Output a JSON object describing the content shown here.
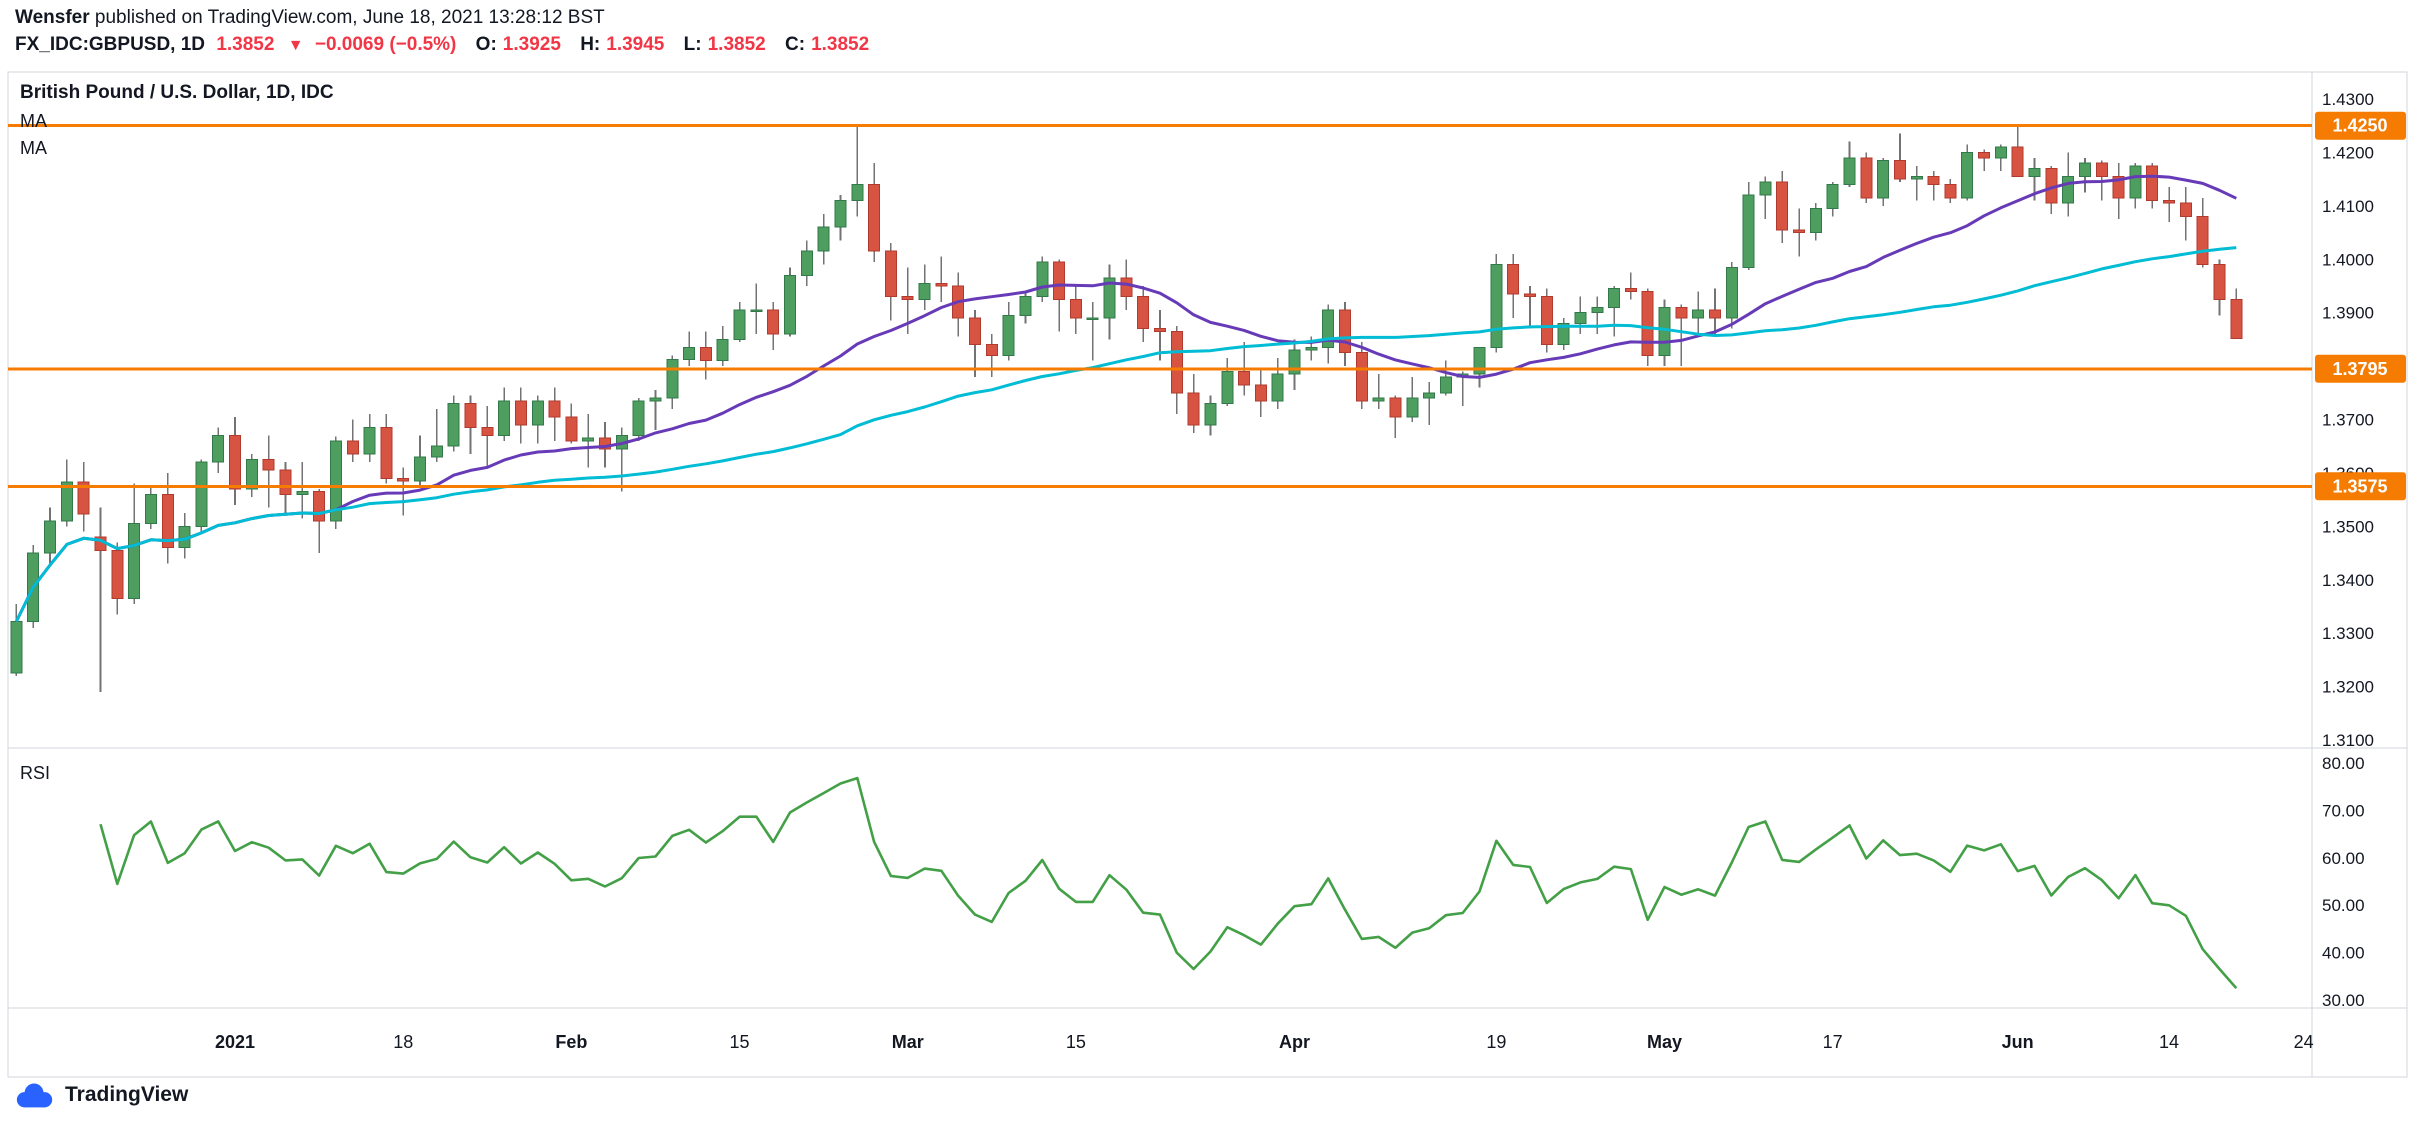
{
  "page": {
    "publish_line": {
      "publisher": "Wensfer",
      "rest": " published on TradingView.com, June 18, 2021 13:28:12 BST"
    },
    "symbol_line": {
      "symbol": "FX_IDC:GBPUSD, 1D",
      "last": "1.3852",
      "direction": "▼",
      "change": "−0.0069 (−0.5%)",
      "o_label": "O:",
      "o": "1.3925",
      "h_label": "H:",
      "h": "1.3945",
      "l_label": "L:",
      "l": "1.3852",
      "c_label": "C:",
      "c": "1.3852"
    },
    "pane_title": "British Pound / U.S. Dollar, 1D, IDC",
    "ma_label_1": "MA",
    "ma_label_2": "MA",
    "rsi_label": "RSI",
    "logo_text": "TradingView"
  },
  "colors": {
    "up_body": "#4e9e5f",
    "up_border": "#33784a",
    "down_body": "#d75442",
    "down_border": "#b03a2e",
    "wick": "#737375",
    "ma_fast": "#673ab7",
    "ma_slow": "#00bcd4",
    "rsi": "#43a047",
    "level": "#f57c00",
    "level_text": "#ffffff",
    "axis_text": "#131722",
    "frame": "#d1d4dc",
    "brand_blue": "#2962ff",
    "value_red": "#f23645"
  },
  "chart_data": {
    "type": "candlestick",
    "title": "British Pound / U.S. Dollar, 1D, IDC",
    "symbol": "FX_IDC:GBPUSD",
    "interval": "1D",
    "price_axis": {
      "min": 1.31,
      "max": 1.43,
      "ticks": [
        1.43,
        1.42,
        1.41,
        1.4,
        1.39,
        1.37,
        1.36,
        1.35,
        1.34,
        1.33,
        1.32,
        1.31
      ]
    },
    "levels": [
      1.425,
      1.3795,
      1.3575
    ],
    "overlays": [
      {
        "name": "MA",
        "period": 20,
        "color": "#673ab7"
      },
      {
        "name": "MA",
        "period": 50,
        "color": "#00bcd4"
      }
    ],
    "rsi": {
      "period": 14,
      "axis_ticks": [
        80,
        70,
        60,
        50,
        40,
        30
      ]
    },
    "future_slots": 4,
    "time_labels": [
      {
        "i": 13,
        "t": "2021",
        "bold": true
      },
      {
        "i": 23,
        "t": "18"
      },
      {
        "i": 33,
        "t": "Feb",
        "bold": true
      },
      {
        "i": 43,
        "t": "15"
      },
      {
        "i": 53,
        "t": "Mar",
        "bold": true
      },
      {
        "i": 63,
        "t": "15"
      },
      {
        "i": 76,
        "t": "Apr",
        "bold": true
      },
      {
        "i": 88,
        "t": "19"
      },
      {
        "i": 98,
        "t": "May",
        "bold": true
      },
      {
        "i": 108,
        "t": "17"
      },
      {
        "i": 119,
        "t": "Jun",
        "bold": true
      },
      {
        "i": 128,
        "t": "14"
      },
      {
        "i": 136,
        "t": "24"
      }
    ],
    "candles": [
      [
        "2020-12-14",
        1.3225,
        1.3355,
        1.322,
        1.3322
      ],
      [
        "2020-12-15",
        1.3322,
        1.3465,
        1.331,
        1.345
      ],
      [
        "2020-12-16",
        1.345,
        1.3535,
        1.343,
        1.351
      ],
      [
        "2020-12-17",
        1.351,
        1.3625,
        1.35,
        1.3583
      ],
      [
        "2020-12-18",
        1.3583,
        1.362,
        1.349,
        1.3523
      ],
      [
        "2020-12-21",
        1.348,
        1.3535,
        1.319,
        1.3455
      ],
      [
        "2020-12-22",
        1.3455,
        1.347,
        1.3335,
        1.3365
      ],
      [
        "2020-12-23",
        1.3365,
        1.358,
        1.3355,
        1.3505
      ],
      [
        "2020-12-24",
        1.3505,
        1.3575,
        1.3495,
        1.356
      ],
      [
        "2020-12-28",
        1.356,
        1.36,
        1.343,
        1.346
      ],
      [
        "2020-12-29",
        1.346,
        1.3525,
        1.344,
        1.35
      ],
      [
        "2020-12-30",
        1.35,
        1.3625,
        1.349,
        1.362
      ],
      [
        "2020-12-31",
        1.362,
        1.3685,
        1.36,
        1.367
      ],
      [
        "2021-01-04",
        1.367,
        1.3705,
        1.354,
        1.357
      ],
      [
        "2021-01-05",
        1.357,
        1.3635,
        1.3555,
        1.3625
      ],
      [
        "2021-01-06",
        1.3625,
        1.367,
        1.3535,
        1.3605
      ],
      [
        "2021-01-07",
        1.3605,
        1.362,
        1.3525,
        1.356
      ],
      [
        "2021-01-08",
        1.356,
        1.362,
        1.3515,
        1.3565
      ],
      [
        "2021-01-11",
        1.3565,
        1.357,
        1.345,
        1.351
      ],
      [
        "2021-01-12",
        1.351,
        1.3668,
        1.3495,
        1.366
      ],
      [
        "2021-01-13",
        1.366,
        1.37,
        1.362,
        1.3635
      ],
      [
        "2021-01-14",
        1.3635,
        1.371,
        1.362,
        1.3685
      ],
      [
        "2021-01-15",
        1.3685,
        1.371,
        1.358,
        1.359
      ],
      [
        "2021-01-18",
        1.359,
        1.361,
        1.352,
        1.3585
      ],
      [
        "2021-01-19",
        1.3585,
        1.367,
        1.3575,
        1.363
      ],
      [
        "2021-01-20",
        1.363,
        1.372,
        1.362,
        1.365
      ],
      [
        "2021-01-21",
        1.365,
        1.3745,
        1.364,
        1.373
      ],
      [
        "2021-01-22",
        1.373,
        1.3745,
        1.3635,
        1.3685
      ],
      [
        "2021-01-25",
        1.3685,
        1.3725,
        1.361,
        1.367
      ],
      [
        "2021-01-26",
        1.367,
        1.376,
        1.366,
        1.3735
      ],
      [
        "2021-01-27",
        1.3735,
        1.376,
        1.3655,
        1.369
      ],
      [
        "2021-01-28",
        1.369,
        1.3745,
        1.3655,
        1.3735
      ],
      [
        "2021-01-29",
        1.3735,
        1.376,
        1.366,
        1.3705
      ],
      [
        "2021-02-01",
        1.3705,
        1.373,
        1.3655,
        1.366
      ],
      [
        "2021-02-02",
        1.366,
        1.371,
        1.361,
        1.3665
      ],
      [
        "2021-02-03",
        1.3665,
        1.3695,
        1.361,
        1.3645
      ],
      [
        "2021-02-04",
        1.3645,
        1.3685,
        1.3565,
        1.367
      ],
      [
        "2021-02-05",
        1.367,
        1.374,
        1.366,
        1.3735
      ],
      [
        "2021-02-08",
        1.3735,
        1.3755,
        1.368,
        1.374
      ],
      [
        "2021-02-09",
        1.374,
        1.382,
        1.372,
        1.3812
      ],
      [
        "2021-02-10",
        1.3812,
        1.3865,
        1.38,
        1.3835
      ],
      [
        "2021-02-11",
        1.3835,
        1.3865,
        1.3775,
        1.381
      ],
      [
        "2021-02-12",
        1.381,
        1.3875,
        1.38,
        1.385
      ],
      [
        "2021-02-15",
        1.385,
        1.392,
        1.3845,
        1.3905
      ],
      [
        "2021-02-16",
        1.3905,
        1.3955,
        1.386,
        1.3905
      ],
      [
        "2021-02-17",
        1.3905,
        1.392,
        1.383,
        1.386
      ],
      [
        "2021-02-18",
        1.386,
        1.3985,
        1.3855,
        1.397
      ],
      [
        "2021-02-19",
        1.397,
        1.4035,
        1.395,
        1.4015
      ],
      [
        "2021-02-22",
        1.4015,
        1.4085,
        1.399,
        1.406
      ],
      [
        "2021-02-23",
        1.406,
        1.412,
        1.4035,
        1.411
      ],
      [
        "2021-02-24",
        1.411,
        1.425,
        1.408,
        1.414
      ],
      [
        "2021-02-25",
        1.414,
        1.418,
        1.3995,
        1.4015
      ],
      [
        "2021-02-26",
        1.4015,
        1.403,
        1.3885,
        1.393
      ],
      [
        "2021-03-01",
        1.393,
        1.3985,
        1.386,
        1.3925
      ],
      [
        "2021-03-02",
        1.3925,
        1.399,
        1.3905,
        1.3955
      ],
      [
        "2021-03-03",
        1.3955,
        1.4005,
        1.392,
        1.395
      ],
      [
        "2021-03-04",
        1.395,
        1.3975,
        1.3855,
        1.389
      ],
      [
        "2021-03-05",
        1.389,
        1.3905,
        1.378,
        1.384
      ],
      [
        "2021-03-08",
        1.384,
        1.386,
        1.378,
        1.382
      ],
      [
        "2021-03-09",
        1.382,
        1.392,
        1.381,
        1.3895
      ],
      [
        "2021-03-10",
        1.3895,
        1.394,
        1.388,
        1.393
      ],
      [
        "2021-03-11",
        1.393,
        1.4005,
        1.392,
        1.3995
      ],
      [
        "2021-03-12",
        1.3995,
        1.4,
        1.3865,
        1.3925
      ],
      [
        "2021-03-15",
        1.3925,
        1.395,
        1.386,
        1.389
      ],
      [
        "2021-03-16",
        1.389,
        1.392,
        1.381,
        1.389
      ],
      [
        "2021-03-17",
        1.389,
        1.399,
        1.385,
        1.3965
      ],
      [
        "2021-03-18",
        1.3965,
        1.4,
        1.3905,
        1.393
      ],
      [
        "2021-03-19",
        1.393,
        1.395,
        1.3845,
        1.387
      ],
      [
        "2021-03-22",
        1.387,
        1.3905,
        1.381,
        1.3865
      ],
      [
        "2021-03-23",
        1.3865,
        1.3875,
        1.371,
        1.375
      ],
      [
        "2021-03-24",
        1.375,
        1.3785,
        1.3675,
        1.369
      ],
      [
        "2021-03-25",
        1.369,
        1.3745,
        1.367,
        1.373
      ],
      [
        "2021-03-26",
        1.373,
        1.3815,
        1.3725,
        1.379
      ],
      [
        "2021-03-29",
        1.379,
        1.3845,
        1.3745,
        1.3765
      ],
      [
        "2021-03-30",
        1.3765,
        1.3795,
        1.3705,
        1.3735
      ],
      [
        "2021-03-31",
        1.3735,
        1.3815,
        1.372,
        1.3785
      ],
      [
        "2021-04-01",
        1.3785,
        1.385,
        1.3755,
        1.383
      ],
      [
        "2021-04-02",
        1.383,
        1.3855,
        1.381,
        1.3835
      ],
      [
        "2021-04-05",
        1.3835,
        1.3915,
        1.3805,
        1.3905
      ],
      [
        "2021-04-06",
        1.3905,
        1.392,
        1.38,
        1.3825
      ],
      [
        "2021-04-07",
        1.3825,
        1.3845,
        1.372,
        1.3735
      ],
      [
        "2021-04-08",
        1.3735,
        1.3785,
        1.372,
        1.374
      ],
      [
        "2021-04-09",
        1.374,
        1.3745,
        1.3665,
        1.3705
      ],
      [
        "2021-04-12",
        1.3705,
        1.378,
        1.3695,
        1.374
      ],
      [
        "2021-04-13",
        1.374,
        1.377,
        1.369,
        1.375
      ],
      [
        "2021-04-14",
        1.375,
        1.381,
        1.3745,
        1.378
      ],
      [
        "2021-04-15",
        1.378,
        1.379,
        1.3725,
        1.3785
      ],
      [
        "2021-04-16",
        1.3785,
        1.3835,
        1.376,
        1.3835
      ],
      [
        "2021-04-19",
        1.3835,
        1.401,
        1.3825,
        1.399
      ],
      [
        "2021-04-20",
        1.399,
        1.401,
        1.389,
        1.3935
      ],
      [
        "2021-04-21",
        1.3935,
        1.395,
        1.387,
        1.393
      ],
      [
        "2021-04-22",
        1.393,
        1.3945,
        1.3825,
        1.384
      ],
      [
        "2021-04-23",
        1.384,
        1.389,
        1.383,
        1.388
      ],
      [
        "2021-04-26",
        1.388,
        1.393,
        1.386,
        1.39
      ],
      [
        "2021-04-27",
        1.39,
        1.393,
        1.386,
        1.391
      ],
      [
        "2021-04-28",
        1.391,
        1.395,
        1.3855,
        1.3945
      ],
      [
        "2021-04-29",
        1.3945,
        1.3975,
        1.3925,
        1.394
      ],
      [
        "2021-04-30",
        1.394,
        1.3945,
        1.38,
        1.382
      ],
      [
        "2021-05-03",
        1.382,
        1.3925,
        1.38,
        1.391
      ],
      [
        "2021-05-04",
        1.391,
        1.3915,
        1.38,
        1.389
      ],
      [
        "2021-05-05",
        1.389,
        1.394,
        1.3855,
        1.3905
      ],
      [
        "2021-05-06",
        1.3905,
        1.3945,
        1.3855,
        1.389
      ],
      [
        "2021-05-07",
        1.389,
        1.3995,
        1.387,
        1.3985
      ],
      [
        "2021-05-10",
        1.3985,
        1.4145,
        1.398,
        1.412
      ],
      [
        "2021-05-11",
        1.412,
        1.4155,
        1.4075,
        1.4145
      ],
      [
        "2021-05-12",
        1.4145,
        1.4165,
        1.403,
        1.4055
      ],
      [
        "2021-05-13",
        1.4055,
        1.4095,
        1.4005,
        1.405
      ],
      [
        "2021-05-14",
        1.405,
        1.4105,
        1.4035,
        1.4095
      ],
      [
        "2021-05-17",
        1.4095,
        1.4145,
        1.408,
        1.414
      ],
      [
        "2021-05-18",
        1.414,
        1.422,
        1.4135,
        1.419
      ],
      [
        "2021-05-19",
        1.419,
        1.42,
        1.4105,
        1.4115
      ],
      [
        "2021-05-20",
        1.4115,
        1.419,
        1.41,
        1.4185
      ],
      [
        "2021-05-21",
        1.4185,
        1.4235,
        1.4145,
        1.415
      ],
      [
        "2021-05-24",
        1.415,
        1.4175,
        1.411,
        1.4155
      ],
      [
        "2021-05-25",
        1.4155,
        1.4165,
        1.411,
        1.414
      ],
      [
        "2021-05-26",
        1.414,
        1.415,
        1.4105,
        1.4115
      ],
      [
        "2021-05-27",
        1.4115,
        1.4215,
        1.411,
        1.42
      ],
      [
        "2021-05-28",
        1.42,
        1.4205,
        1.4165,
        1.419
      ],
      [
        "2021-05-31",
        1.419,
        1.4215,
        1.4165,
        1.421
      ],
      [
        "2021-06-01",
        1.421,
        1.425,
        1.416,
        1.4155
      ],
      [
        "2021-06-02",
        1.4155,
        1.419,
        1.411,
        1.417
      ],
      [
        "2021-06-03",
        1.417,
        1.4175,
        1.4085,
        1.4105
      ],
      [
        "2021-06-04",
        1.4105,
        1.42,
        1.408,
        1.4155
      ],
      [
        "2021-06-07",
        1.4155,
        1.419,
        1.4125,
        1.418
      ],
      [
        "2021-06-08",
        1.418,
        1.4185,
        1.411,
        1.4155
      ],
      [
        "2021-06-09",
        1.4155,
        1.418,
        1.4075,
        1.4115
      ],
      [
        "2021-06-10",
        1.4115,
        1.418,
        1.4095,
        1.4175
      ],
      [
        "2021-06-11",
        1.4175,
        1.418,
        1.4095,
        1.411
      ],
      [
        "2021-06-14",
        1.411,
        1.4135,
        1.407,
        1.4105
      ],
      [
        "2021-06-15",
        1.4105,
        1.4135,
        1.4035,
        1.408
      ],
      [
        "2021-06-16",
        1.408,
        1.4115,
        1.3985,
        1.399
      ],
      [
        "2021-06-17",
        1.399,
        1.4,
        1.3895,
        1.3925
      ],
      [
        "2021-06-18",
        1.3925,
        1.3945,
        1.3852,
        1.3852
      ]
    ]
  }
}
